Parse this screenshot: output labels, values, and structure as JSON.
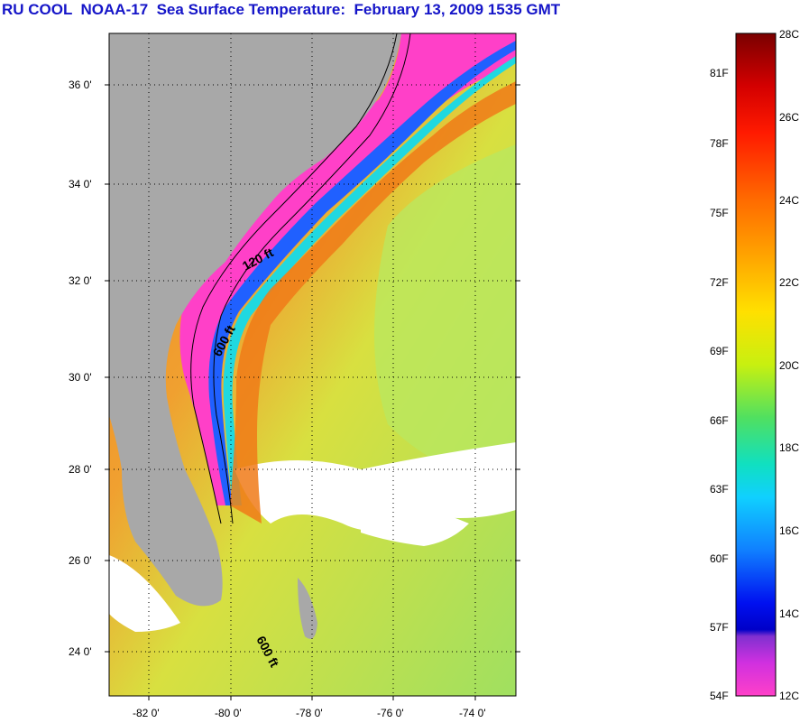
{
  "title": "RU COOL  NOAA-17  Sea Surface Temperature:  February 13, 2009 1535 GMT",
  "map": {
    "lat_labels": [
      "36 0'",
      "34 0'",
      "32 0'",
      "30 0'",
      "28 0'",
      "26 0'",
      "24 0'"
    ],
    "lon_labels": [
      "-82 0'",
      "-80 0'",
      "-78 0'",
      "-76 0'",
      "-74 0'"
    ],
    "contour_labels": [
      "120 ft",
      "600 ft",
      "600 ft"
    ],
    "colors": {
      "land": "#a8a8a8",
      "cloud": "#ffffff",
      "grid": "#000000"
    }
  },
  "colorbar": {
    "fahrenheit_labels": [
      "81F",
      "78F",
      "75F",
      "72F",
      "69F",
      "66F",
      "63F",
      "60F",
      "57F",
      "54F"
    ],
    "celsius_labels": [
      "28C",
      "26C",
      "24C",
      "22C",
      "20C",
      "18C",
      "16C",
      "14C",
      "12C"
    ],
    "range_c": [
      12,
      28
    ],
    "gradient_stops": [
      "#7a0000",
      "#d40000",
      "#ff2a00",
      "#ff7a00",
      "#ffb000",
      "#ffe000",
      "#d8f000",
      "#80e040",
      "#30e0a0",
      "#10d8f0",
      "#1090ff",
      "#1020ff",
      "#0000d8",
      "#9020d0",
      "#ff40d8",
      "#ff40c0"
    ]
  }
}
